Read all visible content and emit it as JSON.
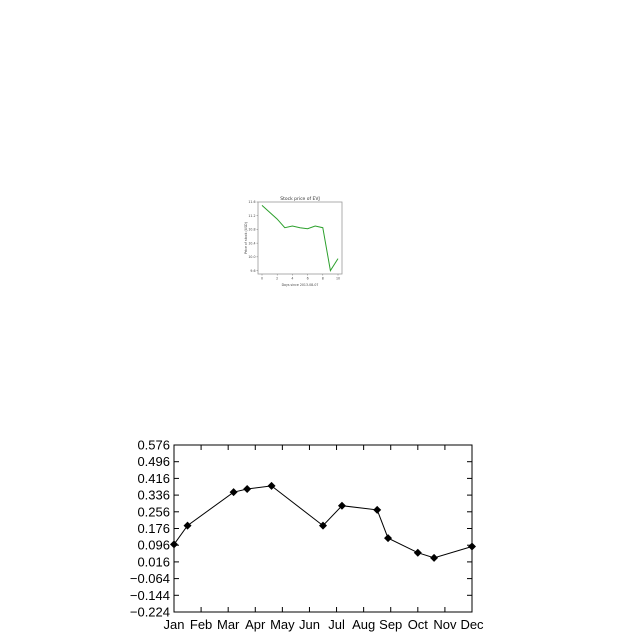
{
  "chart_data": [
    {
      "type": "line",
      "title": "Stock price of EVJ",
      "xlabel": "Days since 2013-08-07",
      "ylabel": "Price of stock (USD)",
      "x_ticks": [
        "0",
        "2",
        "4",
        "6",
        "8",
        "10"
      ],
      "y_ticks": [
        "9.6",
        "10.0",
        "10.4",
        "10.8",
        "11.2",
        "11.6"
      ],
      "xlim": [
        0,
        10
      ],
      "ylim": [
        9.5,
        11.6
      ],
      "grid": false,
      "series": [
        {
          "color": "#2ca02c",
          "x": [
            0,
            1,
            2,
            3,
            4,
            5,
            6,
            7,
            8,
            9,
            10
          ],
          "y": [
            11.5,
            11.3,
            11.1,
            10.85,
            10.9,
            10.85,
            10.82,
            10.9,
            10.85,
            9.6,
            9.95
          ]
        }
      ]
    },
    {
      "type": "line",
      "title": "",
      "xlabel": "",
      "ylabel": "",
      "categories": [
        "Jan",
        "Feb",
        "Mar",
        "Apr",
        "May",
        "Jun",
        "Jul",
        "Aug",
        "Sep",
        "Oct",
        "Nov",
        "Dec"
      ],
      "y_ticks": [
        "0.576",
        "0.496",
        "0.416",
        "0.336",
        "0.256",
        "0.176",
        "0.096",
        "0.016",
        "−0.064",
        "−0.144",
        "−0.224"
      ],
      "ylim": [
        -0.224,
        0.576
      ],
      "xlim": [
        0,
        11
      ],
      "grid": false,
      "series": [
        {
          "color": "#000000",
          "marker": "diamond",
          "x": [
            0,
            0.5,
            2.2,
            2.7,
            3.6,
            5.5,
            6.2,
            7.5,
            7.9,
            9.0,
            9.6,
            11.0
          ],
          "y": [
            0.1,
            0.19,
            0.35,
            0.365,
            0.38,
            0.19,
            0.285,
            0.265,
            0.13,
            0.06,
            0.035,
            0.09
          ]
        }
      ]
    }
  ]
}
